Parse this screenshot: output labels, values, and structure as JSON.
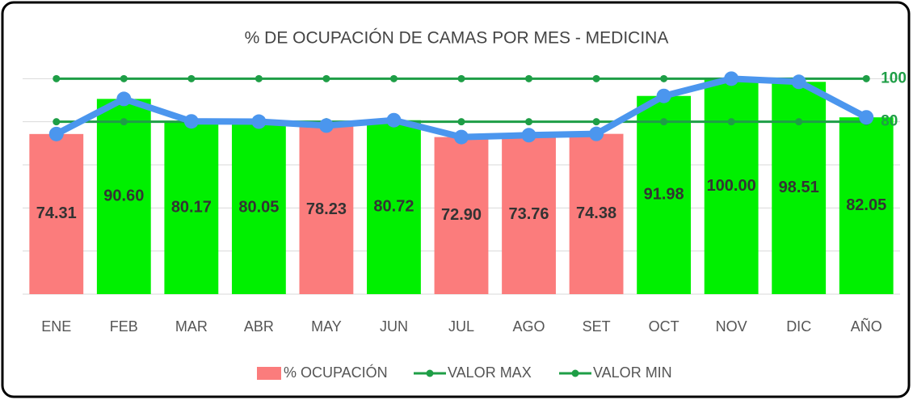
{
  "chart_data": {
    "type": "bar",
    "title": "% DE OCUPACIÓN DE CAMAS POR MES - MEDICINA",
    "categories": [
      "ENE",
      "FEB",
      "MAR",
      "ABR",
      "MAY",
      "JUN",
      "JUL",
      "AGO",
      "SET",
      "OCT",
      "NOV",
      "DIC",
      "AÑO"
    ],
    "series": [
      {
        "name": "% OCUPACIÓN",
        "color": "#fb7c7c",
        "line_color": "#4b96ee",
        "colors": [
          "#fb7c7c",
          "#00f000",
          "#00f000",
          "#00f000",
          "#fb7c7c",
          "#00f000",
          "#fb7c7c",
          "#fb7c7c",
          "#fb7c7c",
          "#00f000",
          "#00f000",
          "#00f000",
          "#00f000"
        ],
        "values": [
          74.31,
          90.6,
          80.17,
          80.05,
          78.23,
          80.72,
          72.9,
          73.76,
          74.38,
          91.98,
          100,
          98.51,
          82.05
        ],
        "value_labels": [
          "74.31",
          "90.60",
          "80.17",
          "80.05",
          "78.23",
          "80.72",
          "72.90",
          "73.76",
          "74.38",
          "91.98",
          "100.00",
          "98.51",
          "82.05"
        ]
      },
      {
        "name": "VALOR MAX",
        "color": "#1e9e46",
        "values": [
          100,
          100,
          100,
          100,
          100,
          100,
          100,
          100,
          100,
          100,
          100,
          100,
          100
        ]
      },
      {
        "name": "VALOR MIN",
        "color": "#1e9e46",
        "values": [
          80,
          80,
          80,
          80,
          80,
          80,
          80,
          80,
          80,
          80,
          80,
          80,
          80
        ]
      }
    ],
    "ylim": [
      0,
      105
    ],
    "yticks": [
      0,
      20,
      40,
      60,
      80,
      100
    ],
    "grid": true
  }
}
